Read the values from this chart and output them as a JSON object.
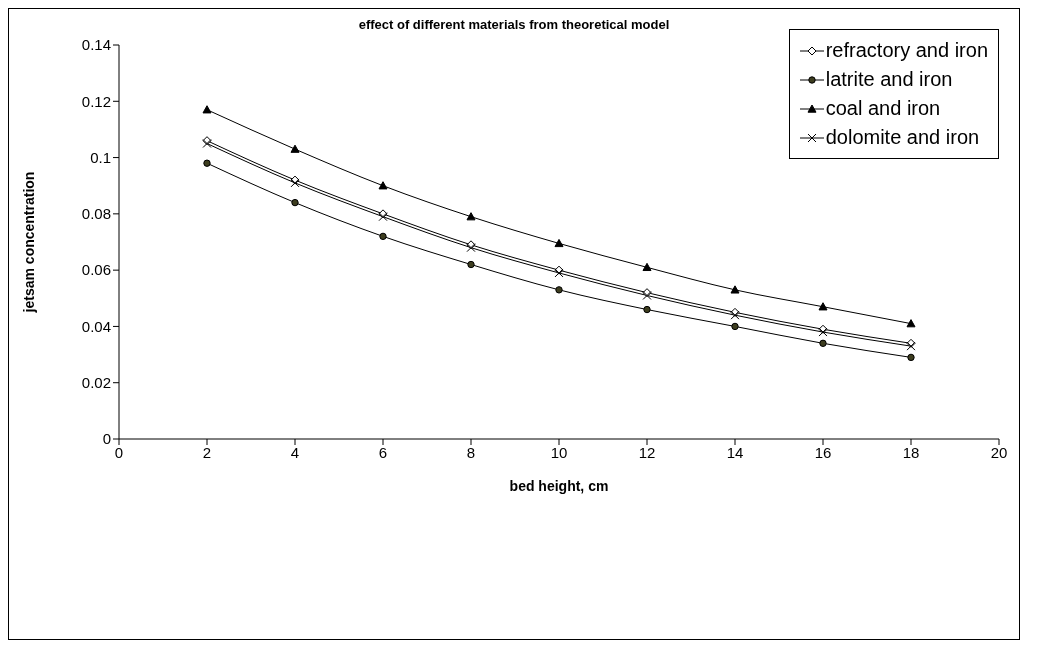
{
  "chart_data": {
    "type": "line",
    "title": "effect of different materials from theoretical model",
    "xlabel": "bed height, cm",
    "ylabel": "jetsam concentration",
    "x": [
      2,
      4,
      6,
      8,
      10,
      12,
      14,
      16,
      18
    ],
    "xlim": [
      0,
      20
    ],
    "xticks": [
      0,
      2,
      4,
      6,
      8,
      10,
      12,
      14,
      16,
      18,
      20
    ],
    "ylim": [
      0,
      0.14
    ],
    "yticks": [
      0,
      0.02,
      0.04,
      0.06,
      0.08,
      0.1,
      0.12,
      0.14
    ],
    "grid": false,
    "legend": "top right",
    "series": [
      {
        "name": "refractory and iron",
        "color": "#000000",
        "marker": "diamond",
        "values": [
          0.106,
          0.092,
          0.08,
          0.069,
          0.06,
          0.052,
          0.045,
          0.039,
          0.034
        ]
      },
      {
        "name": "latrite and iron",
        "color": "#000000",
        "marker": "circle",
        "values": [
          0.098,
          0.084,
          0.072,
          0.062,
          0.053,
          0.046,
          0.04,
          0.034,
          0.029
        ]
      },
      {
        "name": "coal and iron",
        "color": "#000000",
        "marker": "triangle",
        "values": [
          0.117,
          0.103,
          0.09,
          0.079,
          0.0695,
          0.061,
          0.053,
          0.047,
          0.041
        ]
      },
      {
        "name": "dolomite and iron",
        "color": "#000000",
        "marker": "cross",
        "values": [
          0.105,
          0.091,
          0.079,
          0.068,
          0.059,
          0.051,
          0.044,
          0.038,
          0.033
        ]
      }
    ]
  }
}
